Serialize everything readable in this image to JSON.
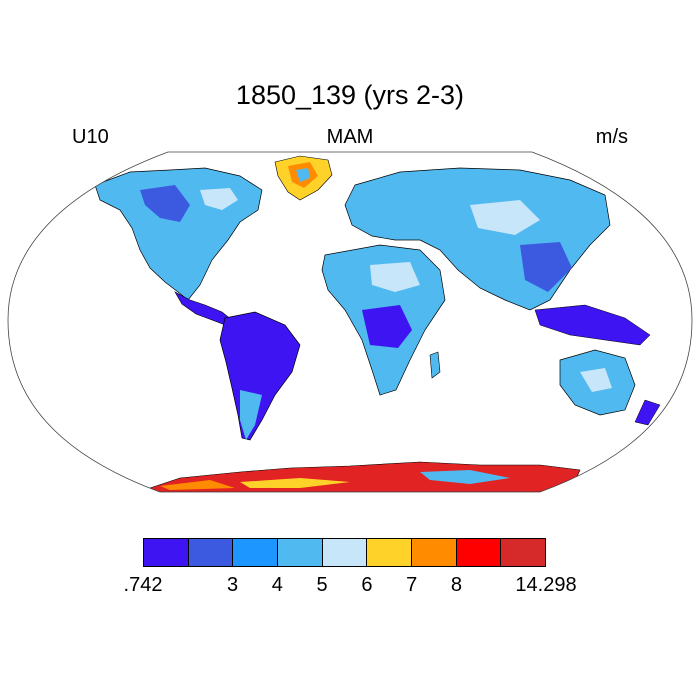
{
  "title": "1850_139 (yrs 2-3)",
  "variable": "U10",
  "season": "MAM",
  "units": "m/s",
  "colors": {
    "ocean": "#ffffff",
    "land_low": "#3e14f2",
    "land_mid": "#1e96ff",
    "land_base": "#50b9f0",
    "land_light": "#c8e6fa",
    "ice_red": "#e22323",
    "ice_orange": "#ff8c00",
    "ice_yellow": "#ffd22a"
  },
  "colorbar": {
    "bins": [
      "#3e14f2",
      "#3c5ae0",
      "#1e96ff",
      "#50b9f0",
      "#c8e6fa",
      "#ffd22a",
      "#ff8c00",
      "#ff0000",
      "#d62a2a"
    ],
    "labels": [
      ".742",
      "3",
      "4",
      "5",
      "6",
      "7",
      "8",
      "14.298"
    ]
  }
}
